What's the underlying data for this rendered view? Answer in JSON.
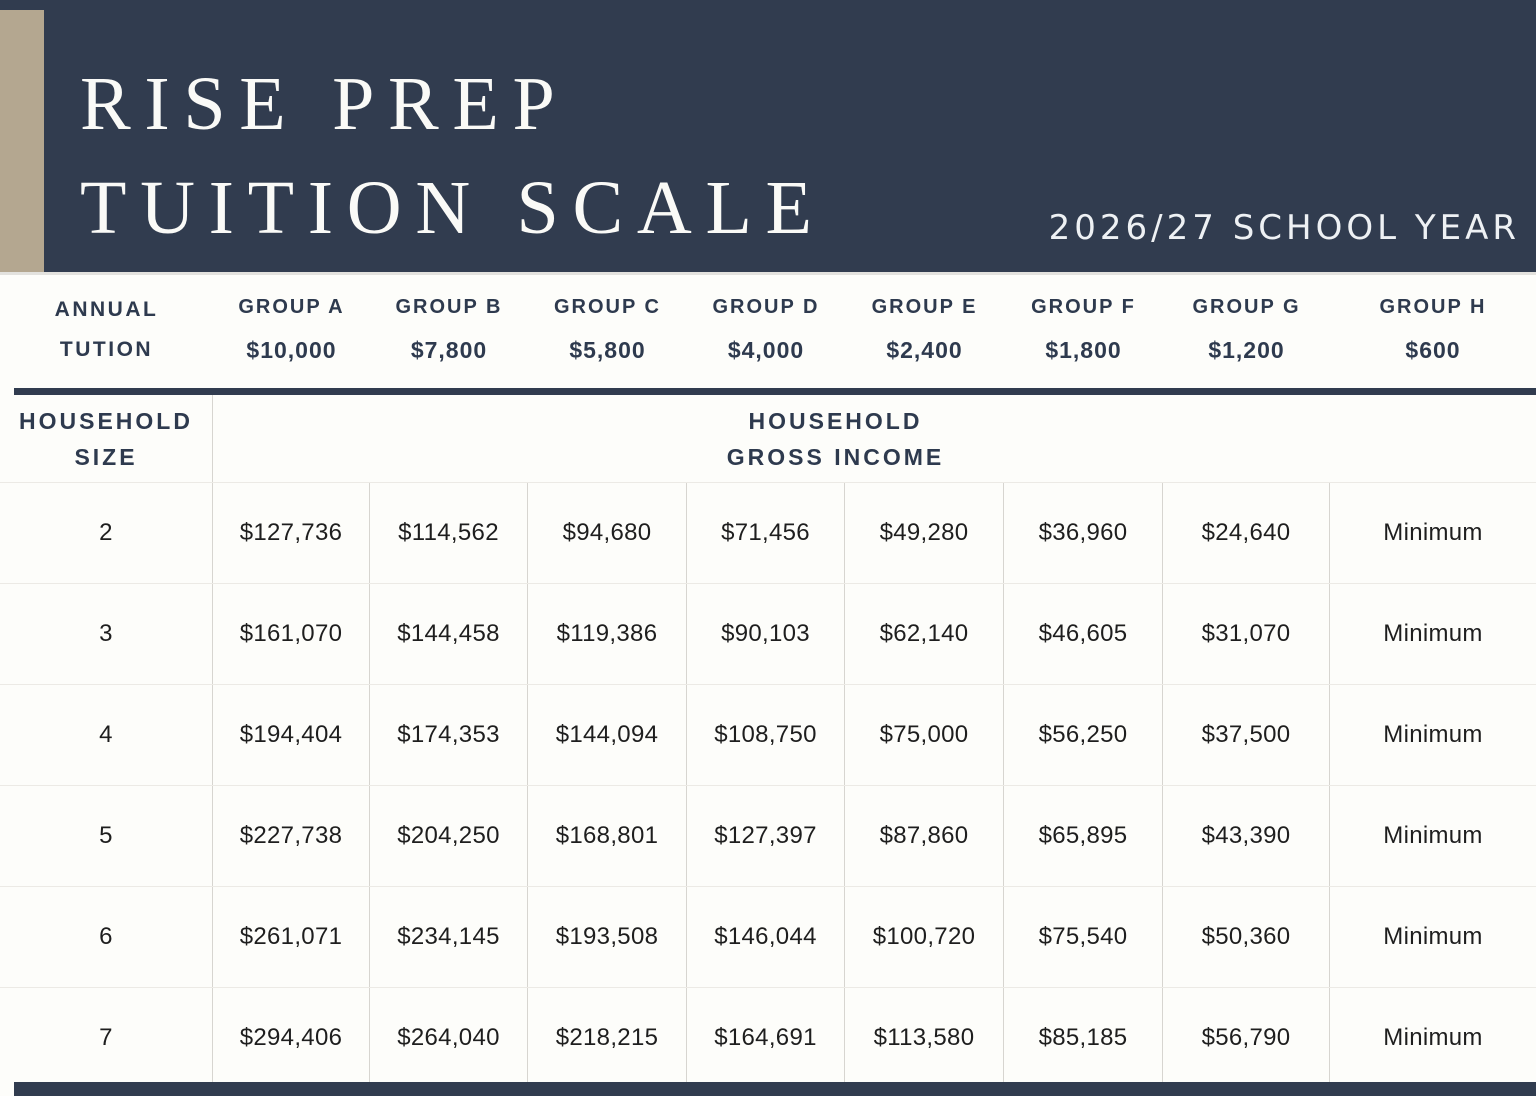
{
  "banner": {
    "title_line1": "RISE PREP",
    "title_line2": "TUITION SCALE",
    "school_year": "2026/27 SCHOOL YEAR",
    "colors": {
      "navy": "#313c4f",
      "tan": "#b4a790"
    }
  },
  "table": {
    "annual_tuition_label_line1": "ANNUAL",
    "annual_tuition_label_line2": "TUTION",
    "groups": [
      {
        "name": "GROUP A",
        "tuition": "$10,000"
      },
      {
        "name": "GROUP B",
        "tuition": "$7,800"
      },
      {
        "name": "GROUP C",
        "tuition": "$5,800"
      },
      {
        "name": "GROUP D",
        "tuition": "$4,000"
      },
      {
        "name": "GROUP E",
        "tuition": "$2,400"
      },
      {
        "name": "GROUP F",
        "tuition": "$1,800"
      },
      {
        "name": "GROUP G",
        "tuition": "$1,200"
      },
      {
        "name": "GROUP H",
        "tuition": "$600"
      }
    ],
    "household_size_label_line1": "HOUSEHOLD",
    "household_size_label_line2": "SIZE",
    "gross_income_label_line1": "HOUSEHOLD",
    "gross_income_label_line2": "GROSS INCOME",
    "rows": [
      {
        "size": "2",
        "incomes": [
          "$127,736",
          "$114,562",
          "$94,680",
          "$71,456",
          "$49,280",
          "$36,960",
          "$24,640",
          "Minimum"
        ]
      },
      {
        "size": "3",
        "incomes": [
          "$161,070",
          "$144,458",
          "$119,386",
          "$90,103",
          "$62,140",
          "$46,605",
          "$31,070",
          "Minimum"
        ]
      },
      {
        "size": "4",
        "incomes": [
          "$194,404",
          "$174,353",
          "$144,094",
          "$108,750",
          "$75,000",
          "$56,250",
          "$37,500",
          "Minimum"
        ]
      },
      {
        "size": "5",
        "incomes": [
          "$227,738",
          "$204,250",
          "$168,801",
          "$127,397",
          "$87,860",
          "$65,895",
          "$43,390",
          "Minimum"
        ]
      },
      {
        "size": "6",
        "incomes": [
          "$261,071",
          "$234,145",
          "$193,508",
          "$146,044",
          "$100,720",
          "$75,540",
          "$50,360",
          "Minimum"
        ]
      },
      {
        "size": "7",
        "incomes": [
          "$294,406",
          "$264,040",
          "$218,215",
          "$164,691",
          "$113,580",
          "$85,185",
          "$56,790",
          "Minimum"
        ]
      }
    ]
  }
}
